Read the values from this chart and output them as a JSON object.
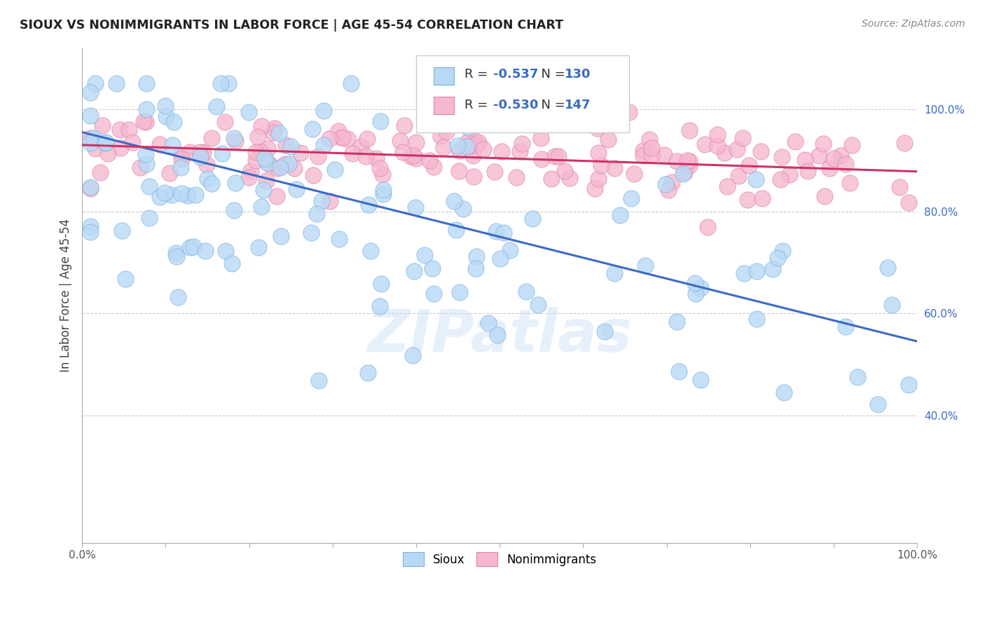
{
  "title": "SIOUX VS NONIMMIGRANTS IN LABOR FORCE | AGE 45-54 CORRELATION CHART",
  "source": "Source: ZipAtlas.com",
  "ylabel": "In Labor Force | Age 45-54",
  "watermark": "ZIPatlas",
  "sioux_R": -0.537,
  "sioux_N": 130,
  "nonimm_R": -0.53,
  "nonimm_N": 147,
  "sioux_color": "#b8d9f5",
  "sioux_edge": "#7ab0e0",
  "nonimm_color": "#f5b8d0",
  "nonimm_edge": "#e080a8",
  "sioux_line_color": "#3a6bc4",
  "nonimm_line_color": "#cc3366",
  "text_color": "#3a6bc4",
  "xlim": [
    0.0,
    1.0
  ],
  "ylim": [
    0.15,
    1.12
  ],
  "yticks": [
    0.4,
    0.6,
    0.8,
    1.0
  ],
  "ytick_labels": [
    "40.0%",
    "60.0%",
    "80.0%",
    "100.0%"
  ],
  "background_color": "#ffffff",
  "grid_color": "#cccccc",
  "sioux_line_start": 0.955,
  "sioux_line_end": 0.545,
  "nonimm_line_start": 0.93,
  "nonimm_line_end": 0.878
}
